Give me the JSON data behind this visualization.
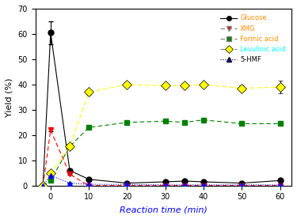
{
  "x": [
    -2,
    0,
    5,
    10,
    20,
    30,
    35,
    40,
    50,
    60
  ],
  "glucose": [
    0,
    60.5,
    6.0,
    2.5,
    1.0,
    1.5,
    1.8,
    1.5,
    1.0,
    2.0
  ],
  "glucose_err": [
    0,
    4.5,
    0.5,
    0.3,
    0.2,
    0.2,
    0.2,
    0.2,
    0.2,
    0.2
  ],
  "xmg": [
    0,
    22.0,
    4.5,
    0,
    0,
    0,
    0,
    0,
    0,
    0
  ],
  "xmg_err": [
    0,
    0.5,
    0.3,
    0,
    0,
    0,
    0,
    0,
    0,
    0
  ],
  "formic": [
    0,
    2.0,
    15.5,
    23.0,
    25.0,
    25.5,
    25.0,
    26.0,
    24.5,
    24.5
  ],
  "formic_err": [
    0,
    0.3,
    0.8,
    0.5,
    0.5,
    0.5,
    0.5,
    0.5,
    0.5,
    0.5
  ],
  "levulinic": [
    0,
    5.0,
    15.5,
    37.0,
    40.0,
    39.5,
    39.5,
    40.0,
    38.5,
    39.0
  ],
  "levulinic_err": [
    0,
    0.3,
    1.0,
    1.0,
    1.0,
    0.8,
    0.8,
    0.8,
    1.0,
    2.5
  ],
  "hmf": [
    0,
    4.0,
    1.0,
    0.5,
    0.5,
    0.3,
    0.3,
    0.3,
    0.3,
    0.3
  ],
  "hmf_err": [
    0,
    0.2,
    0.1,
    0.05,
    0.05,
    0.05,
    0.05,
    0.05,
    0.05,
    0.05
  ],
  "ylim": [
    0,
    70
  ],
  "xlim": [
    -4,
    63
  ],
  "xticks": [
    0,
    10,
    20,
    30,
    40,
    50,
    60
  ],
  "yticks": [
    0,
    10,
    20,
    30,
    40,
    50,
    60,
    70
  ],
  "xlabel": "Reaction time (min)",
  "ylabel": "Yield (%)",
  "glucose_color": "black",
  "xmg_color": "red",
  "formic_color": "green",
  "levulinic_color": "yellow",
  "hmf_color": "blue",
  "line_color_gray": "gray",
  "line_color_black": "black",
  "background_color": "white",
  "legend_labels": [
    "Glucose",
    "XMG",
    "Formic acid",
    "Levulinic acid",
    "5-HMF"
  ],
  "legend_label_colors": [
    "darkorange",
    "darkorange",
    "darkorange",
    "cyan",
    "black"
  ]
}
